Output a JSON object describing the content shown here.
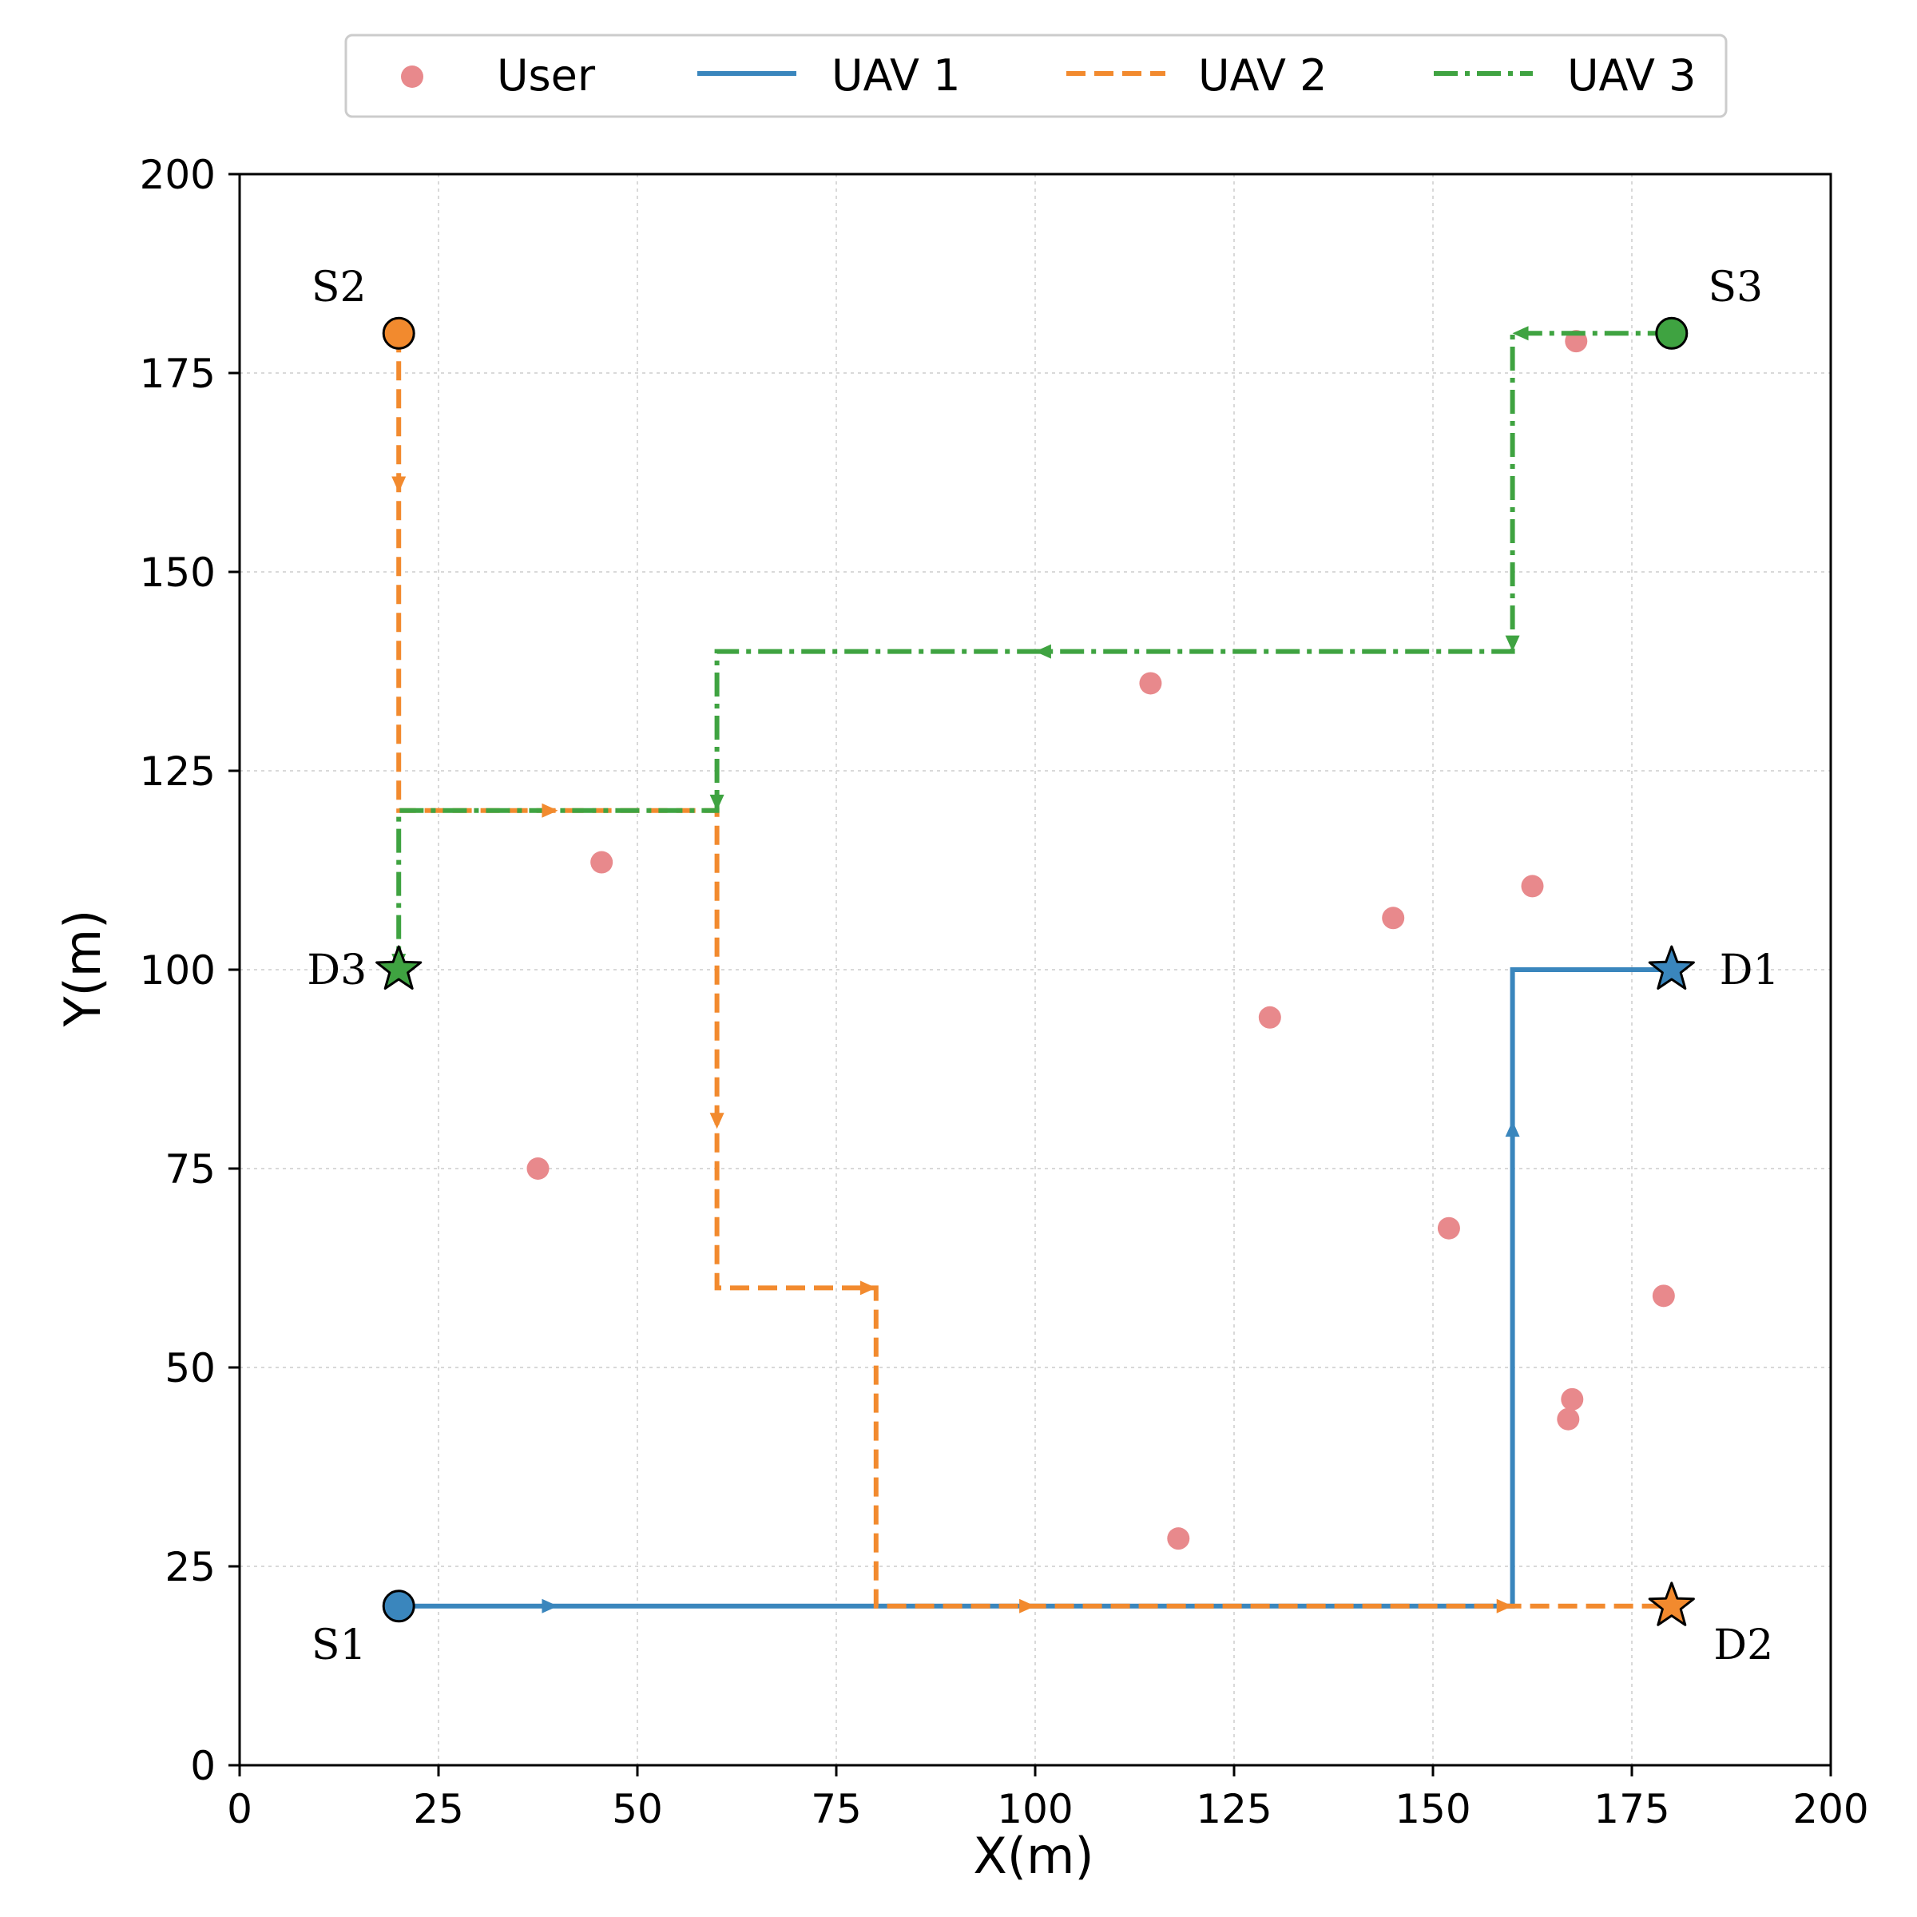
{
  "chart_data": {
    "type": "line",
    "xlabel": "X(m)",
    "ylabel": "Y(m)",
    "xlim": [
      0,
      200
    ],
    "ylim": [
      0,
      200
    ],
    "xticks": [
      0,
      25,
      50,
      75,
      100,
      125,
      150,
      175,
      200
    ],
    "yticks": [
      0,
      25,
      50,
      75,
      100,
      125,
      150,
      175,
      200
    ],
    "grid": true,
    "legend_position": "top-center",
    "users": {
      "name": "User",
      "color": "#e8898c",
      "points": [
        [
          168,
          179
        ],
        [
          114.5,
          136
        ],
        [
          45.5,
          113.5
        ],
        [
          162.5,
          110.5
        ],
        [
          145,
          106.5
        ],
        [
          129.5,
          94
        ],
        [
          37.5,
          75
        ],
        [
          152,
          67.5
        ],
        [
          179,
          59
        ],
        [
          167.5,
          46
        ],
        [
          167,
          43.5
        ],
        [
          118,
          28.5
        ]
      ]
    },
    "series": [
      {
        "name": "UAV 1",
        "color": "#3a86bd",
        "style": "solid",
        "path": [
          [
            20,
            20
          ],
          [
            160,
            20
          ],
          [
            160,
            100
          ],
          [
            180,
            100
          ]
        ],
        "arrows": [
          [
            38,
            20,
            "right"
          ],
          [
            160,
            79,
            "up"
          ]
        ],
        "start": {
          "label": "S1",
          "x": 20,
          "y": 20,
          "label_pos": "below-left"
        },
        "end": {
          "label": "D1",
          "x": 180,
          "y": 100,
          "label_pos": "right"
        }
      },
      {
        "name": "UAV 2",
        "color": "#f28a2e",
        "style": "dashed",
        "path": [
          [
            20,
            180
          ],
          [
            20,
            120
          ],
          [
            60,
            120
          ],
          [
            60,
            60
          ],
          [
            80,
            60
          ],
          [
            80,
            20
          ],
          [
            180,
            20
          ]
        ],
        "arrows": [
          [
            20,
            162,
            "down"
          ],
          [
            38,
            120,
            "right"
          ],
          [
            60,
            82,
            "down"
          ],
          [
            78,
            60,
            "right"
          ],
          [
            98,
            20,
            "right"
          ],
          [
            158,
            20,
            "right"
          ]
        ],
        "start": {
          "label": "S2",
          "x": 20,
          "y": 180,
          "label_pos": "above-left"
        },
        "end": {
          "label": "D2",
          "x": 180,
          "y": 20,
          "label_pos": "below-right"
        }
      },
      {
        "name": "UAV 3",
        "color": "#3fa341",
        "style": "dashdot",
        "path": [
          [
            180,
            180
          ],
          [
            160,
            180
          ],
          [
            160,
            140
          ],
          [
            60,
            140
          ],
          [
            60,
            120
          ],
          [
            20,
            120
          ],
          [
            20,
            100
          ]
        ],
        "arrows": [
          [
            162,
            180,
            "left"
          ],
          [
            160,
            142,
            "down"
          ],
          [
            102,
            140,
            "left"
          ],
          [
            60,
            122,
            "down"
          ],
          [
            20,
            102,
            "down"
          ]
        ],
        "start": {
          "label": "S3",
          "x": 180,
          "y": 180,
          "label_pos": "above-right"
        },
        "end": {
          "label": "D3",
          "x": 20,
          "y": 100,
          "label_pos": "left"
        }
      }
    ]
  }
}
